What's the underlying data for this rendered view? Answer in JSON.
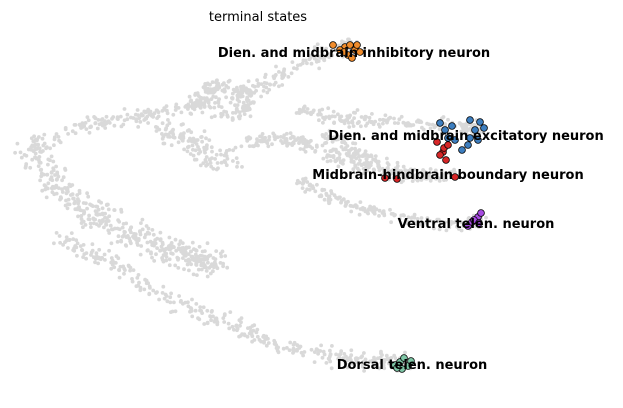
{
  "chart_data": {
    "type": "scatter",
    "title": "terminal states",
    "xlabel": "",
    "ylabel": "",
    "axes_visible": false,
    "grid": false,
    "background_points_color": "#d9d9d9",
    "marker_edge_color": "#000000",
    "series": [
      {
        "name": "Dien. and midbrain inhibitory neuron",
        "color": "#f08c2c",
        "points": [
          [
            345,
            47
          ],
          [
            350,
            45
          ],
          [
            355,
            50
          ],
          [
            348,
            55
          ],
          [
            352,
            58
          ],
          [
            340,
            50
          ],
          [
            357,
            45
          ],
          [
            333,
            45
          ],
          [
            344,
            52
          ],
          [
            360,
            52
          ]
        ]
      },
      {
        "name": "Dien. and midbrain excitatory neuron",
        "color": "#3d7ebf",
        "points": [
          [
            440,
            123
          ],
          [
            445,
            130
          ],
          [
            452,
            126
          ],
          [
            470,
            138
          ],
          [
            475,
            130
          ],
          [
            480,
            122
          ],
          [
            462,
            150
          ],
          [
            468,
            145
          ],
          [
            484,
            128
          ],
          [
            455,
            140
          ],
          [
            470,
            120
          ],
          [
            478,
            140
          ],
          [
            448,
            138
          ]
        ]
      },
      {
        "name": "Midbrain-hindbrain boundary neuron",
        "color": "#d62728",
        "points": [
          [
            443,
            152
          ],
          [
            446,
            160
          ],
          [
            440,
            155
          ],
          [
            437,
            142
          ],
          [
            444,
            148
          ],
          [
            448,
            145
          ],
          [
            455,
            177
          ],
          [
            397,
            179
          ],
          [
            385,
            178
          ]
        ]
      },
      {
        "name": "Ventral telen. neuron",
        "color": "#a64be0",
        "points": [
          [
            468,
            226
          ],
          [
            472,
            222
          ],
          [
            478,
            217
          ],
          [
            481,
            213
          ],
          [
            474,
            220
          ],
          [
            479,
            223
          ]
        ]
      },
      {
        "name": "Dorsal telen. neuron",
        "color": "#7ec6a6",
        "points": [
          [
            395,
            365
          ],
          [
            400,
            362
          ],
          [
            404,
            358
          ],
          [
            408,
            366
          ],
          [
            402,
            369
          ],
          [
            411,
            361
          ],
          [
            397,
            368
          ]
        ]
      }
    ],
    "cluster_labels": [
      {
        "text": "Dien. and midbrain inhibitory neuron"
      },
      {
        "text": "Dien. and midbrain excitatory neuron"
      },
      {
        "text": "Midbrain-hindbrain boundary neuron"
      },
      {
        "text": "Ventral telen. neuron"
      },
      {
        "text": "Dorsal telen. neuron"
      }
    ]
  }
}
